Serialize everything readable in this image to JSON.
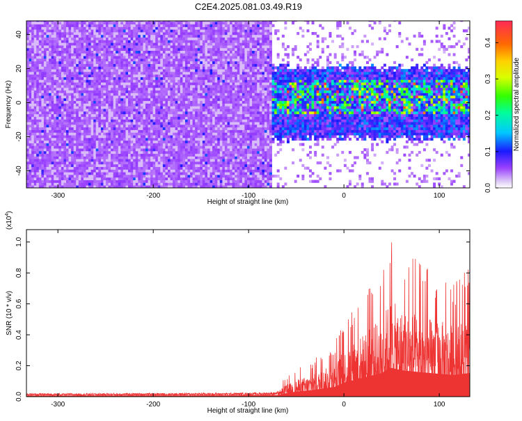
{
  "title": "C2E4.2025.081.03.49.R19",
  "chart_data": [
    {
      "type": "heatmap",
      "xlabel": "Height of straight line (km)",
      "ylabel": "Frequency (Hz)",
      "xlim": [
        -333,
        132
      ],
      "ylim": [
        -50,
        48
      ],
      "x_ticks": [
        -300,
        -200,
        -100,
        0,
        100
      ],
      "y_ticks": [
        -40,
        -20,
        0,
        20,
        40
      ],
      "colorbar": {
        "label": "Normalized spectral amplitude",
        "range": [
          0.0,
          0.46
        ],
        "ticks": [
          0.0,
          0.1,
          0.2,
          0.3,
          0.4
        ]
      },
      "regions": [
        {
          "x_range": [
            -333,
            -78
          ],
          "freq_band": [
            -50,
            48
          ],
          "typical_amplitude": 0.04,
          "peak_amplitude": 0.12
        },
        {
          "x_range": [
            -78,
            132
          ],
          "freq_band": [
            -20,
            18
          ],
          "typical_amplitude": 0.1,
          "peak_amplitude": 0.46,
          "core_band": [
            -5,
            10
          ]
        }
      ]
    },
    {
      "type": "area",
      "xlabel": "Height of straight line (km)",
      "ylabel": "SNR (10 * v/v)",
      "y_multiplier": "(x10",
      "y_multiplier_exp": "4",
      "y_multiplier_close": ")",
      "xlim": [
        -333,
        132
      ],
      "ylim": [
        0,
        1.08
      ],
      "x_ticks": [
        -300,
        -200,
        -100,
        0,
        100
      ],
      "y_ticks": [
        "0.0",
        "0.2",
        "0.4",
        "0.6",
        "0.8",
        "1.0"
      ],
      "color": "#ee3333",
      "envelope": [
        {
          "x": -333,
          "y": 0.02
        },
        {
          "x": -100,
          "y": 0.025
        },
        {
          "x": -70,
          "y": 0.03
        },
        {
          "x": -65,
          "y": 0.1
        },
        {
          "x": -50,
          "y": 0.18
        },
        {
          "x": -30,
          "y": 0.25
        },
        {
          "x": -10,
          "y": 0.35
        },
        {
          "x": 0,
          "y": 0.5
        },
        {
          "x": 20,
          "y": 0.68
        },
        {
          "x": 40,
          "y": 0.85
        },
        {
          "x": 48,
          "y": 1.05
        },
        {
          "x": 60,
          "y": 0.95
        },
        {
          "x": 80,
          "y": 0.88
        },
        {
          "x": 100,
          "y": 0.82
        },
        {
          "x": 115,
          "y": 0.78
        },
        {
          "x": 132,
          "y": 0.85
        }
      ]
    }
  ]
}
